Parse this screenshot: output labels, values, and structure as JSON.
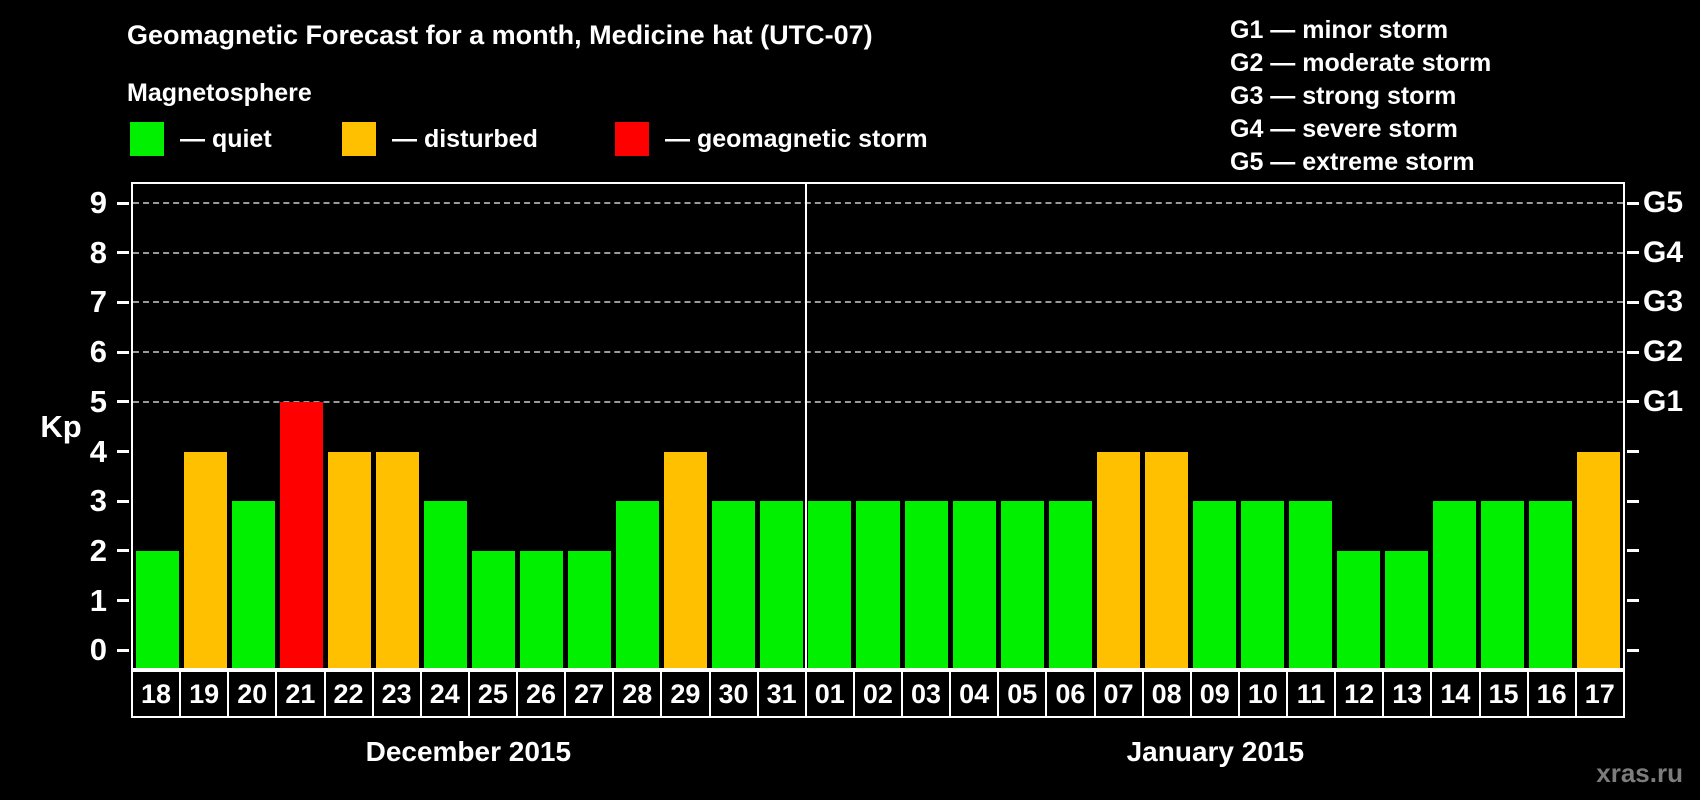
{
  "header": {
    "title": "Geomagnetic Forecast for a month, Medicine hat (UTC-07)",
    "subtitle": "Magnetosphere",
    "watermark": "xras.ru"
  },
  "legend": {
    "items": [
      {
        "key": "quiet",
        "label": "— quiet",
        "color": "#00f000"
      },
      {
        "key": "disturbed",
        "label": "— disturbed",
        "color": "#ffc000"
      },
      {
        "key": "storm",
        "label": "— geomagnetic storm",
        "color": "#ff0000"
      }
    ]
  },
  "gscale_legend": {
    "items": [
      "G1 — minor storm",
      "G2 — moderate storm",
      "G3 — strong storm",
      "G4 — severe storm",
      "G5 — extreme storm"
    ]
  },
  "chart_data": {
    "type": "bar",
    "title": "Geomagnetic Forecast for a month, Medicine hat (UTC-07)",
    "ylabel": "Kp",
    "ylim": [
      0,
      9
    ],
    "yticks": [
      "0",
      "1",
      "2",
      "3",
      "4",
      "5",
      "6",
      "7",
      "8",
      "9"
    ],
    "gridlines_at": [
      5,
      6,
      7,
      8,
      9
    ],
    "grid": "dashed-horizontal-only",
    "legend_position": "top-left",
    "right_axis": [
      {
        "value": 5,
        "label": "G1"
      },
      {
        "value": 6,
        "label": "G2"
      },
      {
        "value": 7,
        "label": "G3"
      },
      {
        "value": 8,
        "label": "G4"
      },
      {
        "value": 9,
        "label": "G5"
      }
    ],
    "months": [
      {
        "label": "December 2015",
        "days": 14
      },
      {
        "label": "January 2015",
        "days": 17
      }
    ],
    "categories": [
      "18",
      "19",
      "20",
      "21",
      "22",
      "23",
      "24",
      "25",
      "26",
      "27",
      "28",
      "29",
      "30",
      "31",
      "01",
      "02",
      "03",
      "04",
      "05",
      "06",
      "07",
      "08",
      "09",
      "10",
      "11",
      "12",
      "13",
      "14",
      "15",
      "16",
      "17"
    ],
    "values": [
      2,
      4,
      3,
      5,
      4,
      4,
      3,
      2,
      2,
      2,
      3,
      4,
      3,
      3,
      3,
      3,
      3,
      3,
      3,
      3,
      4,
      4,
      3,
      3,
      3,
      2,
      2,
      3,
      3,
      3,
      4
    ],
    "statuses": [
      "quiet",
      "disturbed",
      "quiet",
      "storm",
      "disturbed",
      "disturbed",
      "quiet",
      "quiet",
      "quiet",
      "quiet",
      "quiet",
      "disturbed",
      "quiet",
      "quiet",
      "quiet",
      "quiet",
      "quiet",
      "quiet",
      "quiet",
      "quiet",
      "disturbed",
      "disturbed",
      "quiet",
      "quiet",
      "quiet",
      "quiet",
      "quiet",
      "quiet",
      "quiet",
      "quiet",
      "disturbed"
    ],
    "status_colors": {
      "quiet": "#00f000",
      "disturbed": "#ffc000",
      "storm": "#ff0000"
    }
  }
}
